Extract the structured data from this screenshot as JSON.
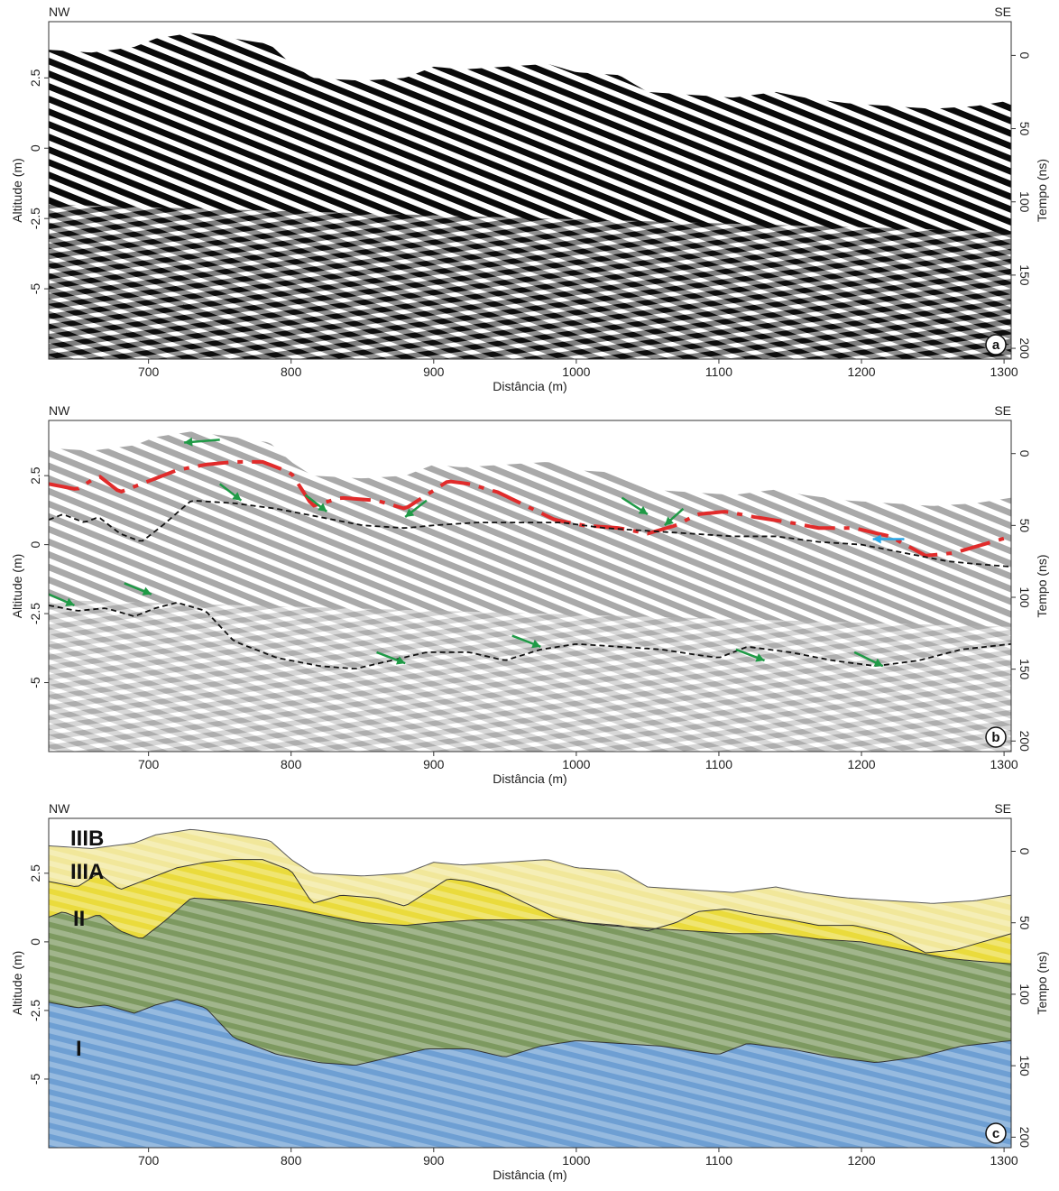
{
  "panels": [
    {
      "id": "a",
      "corner_left": "NW",
      "corner_right": "SE",
      "xlabel": "Distância (m)",
      "ylabel_left": "Altitude (m)",
      "ylabel_right": "Tempo (ns)",
      "panel_label": "a",
      "layer_labels": []
    },
    {
      "id": "b",
      "corner_left": "NW",
      "corner_right": "SE",
      "xlabel": "Distância (m)",
      "ylabel_left": "Altitude (m)",
      "ylabel_right": "Tempo (ns)",
      "panel_label": "b",
      "layer_labels": []
    },
    {
      "id": "c",
      "corner_left": "NW",
      "corner_right": "SE",
      "xlabel": "Distância (m)",
      "ylabel_left": "Altitude (m)",
      "ylabel_right": "Tempo (ns)",
      "panel_label": "c",
      "layer_labels": [
        "IIIB",
        "IIIA",
        "II",
        "I"
      ]
    }
  ],
  "chart_data": {
    "type": "area",
    "x_ticks": [
      700,
      800,
      900,
      1000,
      1100,
      1200,
      1300
    ],
    "x_tick_labels": [
      "700",
      "800",
      "900",
      "1000",
      "1100",
      "1200",
      "1300"
    ],
    "xlim": [
      630,
      1305
    ],
    "y_ticks": [
      2.5,
      0,
      -2.5,
      -5
    ],
    "y_tick_labels": [
      "2.5",
      "0",
      "-2.5",
      "-5"
    ],
    "ylim": [
      -7.5,
      4.5
    ],
    "time_ticks": [
      0,
      50,
      100,
      150,
      200
    ],
    "time_tick_labels": [
      "0",
      "50",
      "100",
      "150",
      "200"
    ],
    "time_at_altitude_3_3": 0,
    "ns_per_m_altitude": 19.2,
    "surface": {
      "x": [
        630,
        660,
        690,
        705,
        730,
        760,
        785,
        800,
        815,
        850,
        880,
        900,
        920,
        950,
        980,
        1000,
        1030,
        1050,
        1080,
        1110,
        1140,
        1160,
        1190,
        1220,
        1250,
        1280,
        1305
      ],
      "y": [
        3.5,
        3.4,
        3.6,
        3.9,
        4.1,
        3.9,
        3.7,
        3.0,
        2.5,
        2.4,
        2.5,
        2.9,
        2.8,
        2.9,
        3.0,
        2.7,
        2.6,
        2.0,
        1.9,
        1.8,
        2.0,
        1.8,
        1.6,
        1.5,
        1.4,
        1.5,
        1.7
      ]
    },
    "boundaries": [
      {
        "name": "IIIB/IIIA",
        "x": [
          630,
          650,
          665,
          680,
          700,
          720,
          740,
          760,
          780,
          800,
          815,
          835,
          860,
          880,
          895,
          910,
          925,
          945,
          965,
          985,
          1005,
          1030,
          1050,
          1070,
          1085,
          1105,
          1125,
          1150,
          1170,
          1195,
          1220,
          1245,
          1265,
          1285,
          1305
        ],
        "y": [
          2.2,
          2.0,
          2.5,
          1.9,
          2.3,
          2.7,
          2.9,
          3.0,
          3.0,
          2.6,
          1.4,
          1.7,
          1.6,
          1.3,
          1.8,
          2.3,
          2.2,
          1.9,
          1.4,
          0.9,
          0.7,
          0.6,
          0.4,
          0.7,
          1.1,
          1.2,
          1.0,
          0.8,
          0.6,
          0.6,
          0.3,
          -0.4,
          -0.3,
          0.0,
          0.3
        ]
      },
      {
        "name": "IIIA/II",
        "x": [
          630,
          640,
          655,
          665,
          680,
          695,
          710,
          730,
          760,
          790,
          820,
          850,
          880,
          900,
          930,
          960,
          990,
          1020,
          1050,
          1080,
          1110,
          1140,
          1170,
          1200,
          1230,
          1260,
          1280,
          1305
        ],
        "y": [
          0.9,
          1.1,
          0.8,
          1.0,
          0.4,
          0.1,
          0.7,
          1.6,
          1.5,
          1.3,
          1.0,
          0.7,
          0.6,
          0.7,
          0.8,
          0.8,
          0.8,
          0.6,
          0.5,
          0.4,
          0.3,
          0.3,
          0.1,
          0.0,
          -0.3,
          -0.6,
          -0.7,
          -0.8
        ]
      },
      {
        "name": "II/I",
        "x": [
          630,
          650,
          670,
          690,
          705,
          720,
          740,
          760,
          790,
          820,
          845,
          870,
          895,
          925,
          950,
          975,
          1000,
          1030,
          1060,
          1085,
          1100,
          1120,
          1150,
          1180,
          1210,
          1240,
          1270,
          1305
        ],
        "y": [
          -2.2,
          -2.4,
          -2.3,
          -2.6,
          -2.3,
          -2.1,
          -2.4,
          -3.5,
          -4.1,
          -4.4,
          -4.5,
          -4.2,
          -3.9,
          -3.9,
          -4.2,
          -3.8,
          -3.6,
          -3.7,
          -3.8,
          -4.0,
          -4.1,
          -3.7,
          -3.9,
          -4.2,
          -4.4,
          -4.2,
          -3.8,
          -3.6
        ]
      }
    ],
    "layers": [
      {
        "name": "IIIB",
        "color": "#f1e79a"
      },
      {
        "name": "IIIA",
        "color": "#eadb3c"
      },
      {
        "name": "II",
        "color": "#7d9960"
      },
      {
        "name": "I",
        "color": "#6e9fd3"
      }
    ],
    "colors": {
      "reflector_red": "#e12b2b",
      "arrow_green": "#1f9a46",
      "arrow_blue": "#2aa8e8",
      "boundary_dashed": "#111111"
    },
    "interpretation_arrows": [
      {
        "panel": "b",
        "color": "green",
        "from_x": 750,
        "from_y": 3.8,
        "to_x": 725,
        "to_y": 3.7
      },
      {
        "panel": "b",
        "color": "green",
        "from_x": 750,
        "from_y": 2.2,
        "to_x": 765,
        "to_y": 1.6
      },
      {
        "panel": "b",
        "color": "green",
        "from_x": 810,
        "from_y": 1.8,
        "to_x": 825,
        "to_y": 1.2
      },
      {
        "panel": "b",
        "color": "green",
        "from_x": 895,
        "from_y": 1.6,
        "to_x": 880,
        "to_y": 1.0
      },
      {
        "panel": "b",
        "color": "green",
        "from_x": 1032,
        "from_y": 1.7,
        "to_x": 1050,
        "to_y": 1.1
      },
      {
        "panel": "b",
        "color": "green",
        "from_x": 1075,
        "from_y": 1.3,
        "to_x": 1062,
        "to_y": 0.7
      },
      {
        "panel": "b",
        "color": "green",
        "from_x": 630,
        "from_y": -1.8,
        "to_x": 648,
        "to_y": -2.2
      },
      {
        "panel": "b",
        "color": "green",
        "from_x": 683,
        "from_y": -1.4,
        "to_x": 702,
        "to_y": -1.8
      },
      {
        "panel": "b",
        "color": "green",
        "from_x": 860,
        "from_y": -3.9,
        "to_x": 880,
        "to_y": -4.3
      },
      {
        "panel": "b",
        "color": "green",
        "from_x": 955,
        "from_y": -3.3,
        "to_x": 975,
        "to_y": -3.7
      },
      {
        "panel": "b",
        "color": "green",
        "from_x": 1112,
        "from_y": -3.8,
        "to_x": 1132,
        "to_y": -4.2
      },
      {
        "panel": "b",
        "color": "green",
        "from_x": 1195,
        "from_y": -3.9,
        "to_x": 1215,
        "to_y": -4.4
      },
      {
        "panel": "b",
        "color": "blue",
        "from_x": 1230,
        "from_y": 0.2,
        "to_x": 1208,
        "to_y": 0.2
      }
    ]
  }
}
